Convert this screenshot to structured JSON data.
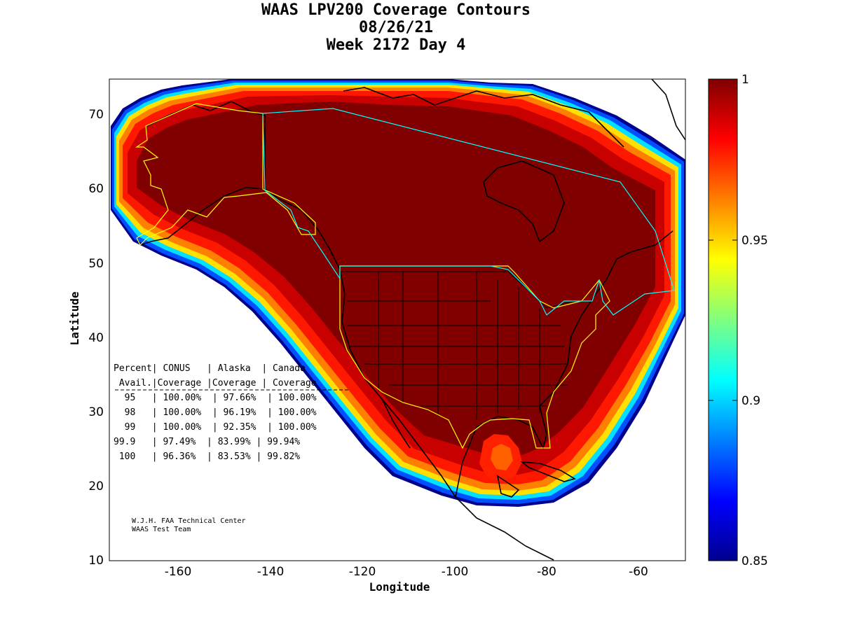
{
  "title": {
    "line1": "WAAS LPV200 Coverage Contours",
    "line2": "08/26/21",
    "line3": "Week 2172 Day 4"
  },
  "axes": {
    "xlabel": "Longitude",
    "ylabel": "Latitude",
    "xlim": [
      -175,
      -50
    ],
    "ylim": [
      10,
      75
    ],
    "xticks": [
      "-160",
      "-140",
      "-120",
      "-100",
      "-80",
      "-60"
    ],
    "yticks": [
      "10",
      "20",
      "30",
      "40",
      "50",
      "60",
      "70"
    ]
  },
  "colorbar": {
    "min": 0.85,
    "max": 1,
    "colormap": "jet",
    "ticks": [
      "0.85",
      "0.9",
      "0.95",
      "1"
    ]
  },
  "stats_table": {
    "header1": "Percent| CONUS   | Alaska  | Canada",
    "header2": " Avail.|Coverage |Coverage | Coverage",
    "rows": [
      "  95   | 100.00%  | 97.66%  | 100.00%",
      "  98   | 100.00%  | 96.19%  | 100.00%",
      "  99   | 100.00%  | 92.35%  | 100.00%",
      "99.9   | 97.49%  | 83.99% | 99.94%",
      " 100   | 96.36%  | 83.53% | 99.82%"
    ]
  },
  "credit": {
    "line1": "W.J.H. FAA Technical Center",
    "line2": "WAAS Test Team"
  },
  "colors": {
    "full_coverage": "#800000",
    "high": "#cc0000",
    "mid_red": "#ff2000",
    "orange": "#ff8000",
    "yellow": "#ffff00",
    "cyan": "#00ffff",
    "blue": "#0040ff",
    "dark_blue": "#00008f",
    "service_volume_line": "#ffff00",
    "canada_boundary_line": "#00ffff"
  }
}
